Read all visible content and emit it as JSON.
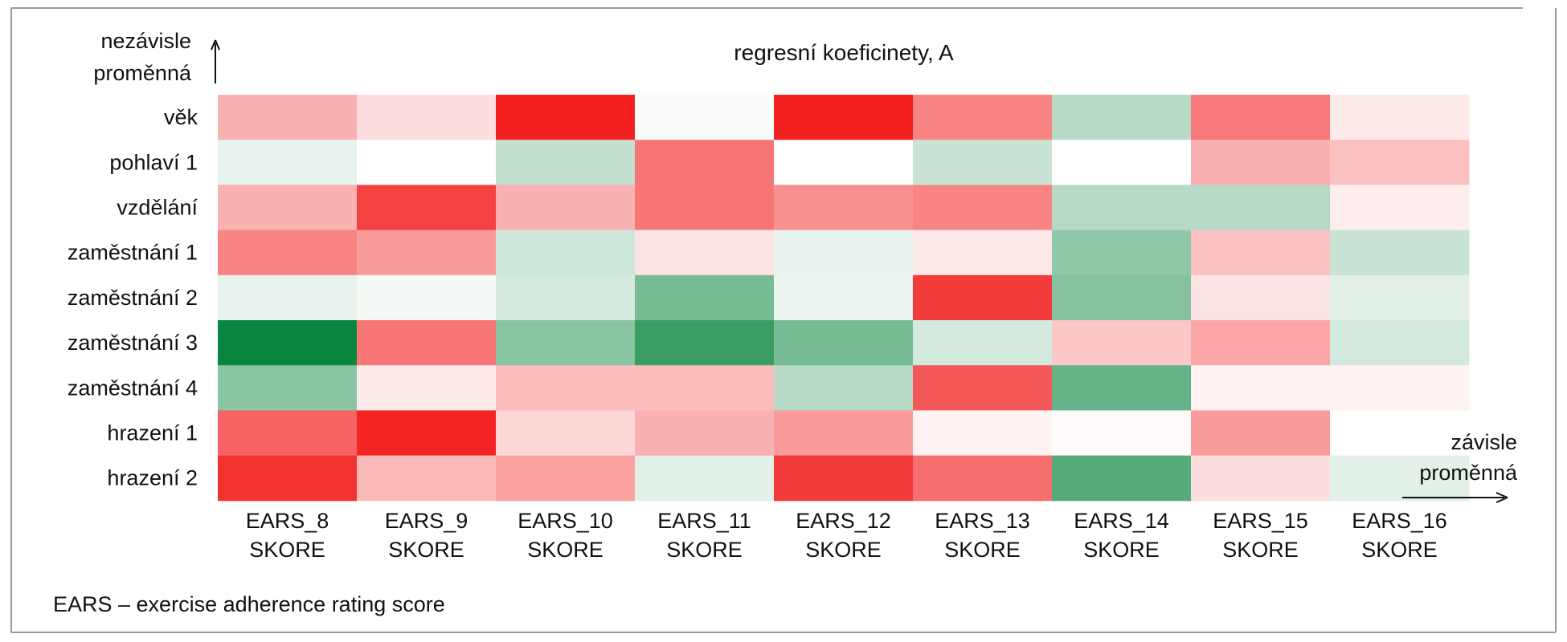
{
  "chart_data": {
    "type": "heatmap",
    "title": "regresní koeficinety, A",
    "ylabel": [
      "nezávisle",
      "proměnná"
    ],
    "xlabel": [
      "závisle",
      "proměnná"
    ],
    "footnote": "EARS – exercise adherence rating score",
    "rows": [
      "věk",
      "pohlaví 1",
      "vzdělání",
      "zaměstnání 1",
      "zaměstnání 2",
      "zaměstnání 3",
      "zaměstnání 4",
      "hrazení 1",
      "hrazení 2"
    ],
    "columns": [
      {
        "line1": "EARS_8",
        "line2": "SKORE"
      },
      {
        "line1": "EARS_9",
        "line2": "SKORE"
      },
      {
        "line1": "EARS_10",
        "line2": "SKORE"
      },
      {
        "line1": "EARS_11",
        "line2": "SKORE"
      },
      {
        "line1": "EARS_12",
        "line2": "SKORE"
      },
      {
        "line1": "EARS_13",
        "line2": "SKORE"
      },
      {
        "line1": "EARS_14",
        "line2": "SKORE"
      },
      {
        "line1": "EARS_15",
        "line2": "SKORE"
      },
      {
        "line1": "EARS_16",
        "line2": "SKORE"
      }
    ],
    "colorscale": {
      "negative": "#f22020",
      "zero": "#ffffff",
      "positive": "#0a8540"
    },
    "values": [
      [
        -0.35,
        -0.15,
        -1.0,
        0.03,
        -1.0,
        -0.55,
        0.3,
        -0.6,
        -0.1
      ],
      [
        0.1,
        0.0,
        0.25,
        -0.62,
        0.0,
        0.22,
        0.0,
        -0.35,
        -0.28
      ],
      [
        -0.35,
        -0.85,
        -0.35,
        -0.62,
        -0.5,
        -0.55,
        0.3,
        0.3,
        -0.08
      ],
      [
        -0.55,
        -0.45,
        0.2,
        -0.12,
        0.1,
        -0.1,
        0.45,
        -0.28,
        0.22
      ],
      [
        0.1,
        0.04,
        0.18,
        0.55,
        0.08,
        -0.88,
        0.5,
        -0.12,
        0.12
      ],
      [
        1.0,
        -0.62,
        0.48,
        0.8,
        0.55,
        0.18,
        -0.25,
        -0.4,
        0.18
      ],
      [
        0.48,
        -0.1,
        -0.3,
        -0.3,
        0.3,
        -0.75,
        0.62,
        -0.06,
        -0.06
      ],
      [
        -0.7,
        -0.98,
        -0.18,
        -0.35,
        -0.45,
        -0.06,
        -0.02,
        -0.45,
        0.0
      ],
      [
        -0.92,
        -0.32,
        -0.42,
        0.12,
        -0.88,
        -0.65,
        0.7,
        -0.15,
        0.12
      ]
    ]
  }
}
